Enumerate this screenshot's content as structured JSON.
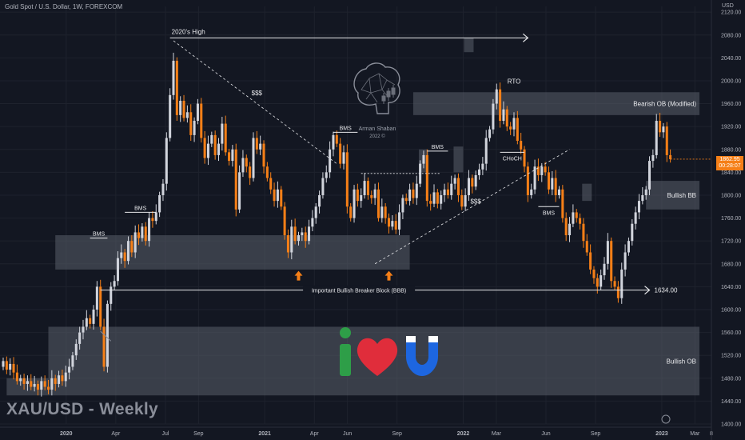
{
  "header": {
    "title": "Gold Spot / U.S. Dollar, 1W, FOREXCOM",
    "currency": "USD"
  },
  "watermark": "XAU/USD - Weekly",
  "price_tag": {
    "price": "1862.95",
    "countdown": "00:28:07"
  },
  "logo": {
    "name": "Arman Shaban",
    "year": "2022 ©",
    "icon": "brain-circuit-icon"
  },
  "love_graphic": {
    "icons": [
      "letter-i-icon",
      "heart-icon",
      "magnet-u-icon"
    ],
    "colors": [
      "#2e9e48",
      "#e02d3b",
      "#1d66e0"
    ]
  },
  "colors": {
    "background": "#131722",
    "bull": "#d1d4dc",
    "bear": "#f57f17",
    "zone": "#5a5e6a",
    "accent": "#f57f17"
  },
  "chart_data": {
    "type": "candlestick",
    "ylim": [
      1400,
      2130
    ],
    "y_ticks": [
      "2120.00",
      "2080.00",
      "2040.00",
      "2000.00",
      "1960.00",
      "1920.00",
      "1880.00",
      "1840.00",
      "1800.00",
      "1760.00",
      "1720.00",
      "1680.00",
      "1640.00",
      "1600.00",
      "1560.00",
      "1520.00",
      "1480.00",
      "1440.00",
      "1400.00"
    ],
    "x_ticks": [
      {
        "label": "2020",
        "date": "2020-01"
      },
      {
        "label": "Apr",
        "date": "2020-04"
      },
      {
        "label": "Jul",
        "date": "2020-07"
      },
      {
        "label": "Sep",
        "date": "2020-09"
      },
      {
        "label": "2021",
        "date": "2021-01"
      },
      {
        "label": "Apr",
        "date": "2021-04"
      },
      {
        "label": "Jun",
        "date": "2021-06"
      },
      {
        "label": "Sep",
        "date": "2021-09"
      },
      {
        "label": "2022",
        "date": "2022-01"
      },
      {
        "label": "Mar",
        "date": "2022-03"
      },
      {
        "label": "Jun",
        "date": "2022-06"
      },
      {
        "label": "Sep",
        "date": "2022-09"
      },
      {
        "label": "2023",
        "date": "2023-01"
      },
      {
        "label": "Mar",
        "date": "2023-03"
      },
      {
        "label": "8",
        "date": "2023-04"
      }
    ],
    "date_range": [
      "2019-09",
      "2023-04"
    ],
    "weekly_closes": [
      1510,
      1495,
      1505,
      1490,
      1475,
      1480,
      1470,
      1475,
      1465,
      1470,
      1460,
      1475,
      1465,
      1460,
      1480,
      1470,
      1485,
      1475,
      1490,
      1500,
      1520,
      1540,
      1560,
      1570,
      1585,
      1575,
      1600,
      1640,
      1570,
      1500,
      1610,
      1640,
      1650,
      1690,
      1700,
      1685,
      1720,
      1700,
      1735,
      1725,
      1745,
      1720,
      1760,
      1755,
      1770,
      1800,
      1820,
      1900,
      1975,
      2035,
      1940,
      1965,
      1935,
      1945,
      1905,
      1930,
      1960,
      1900,
      1865,
      1890,
      1905,
      1870,
      1890,
      1925,
      1875,
      1860,
      1880,
      1775,
      1840,
      1865,
      1850,
      1830,
      1900,
      1880,
      1890,
      1850,
      1830,
      1810,
      1790,
      1810,
      1780,
      1730,
      1700,
      1745,
      1720,
      1730,
      1735,
      1720,
      1745,
      1760,
      1780,
      1800,
      1830,
      1840,
      1880,
      1905,
      1890,
      1855,
      1875,
      1780,
      1760,
      1810,
      1790,
      1800,
      1825,
      1800,
      1795,
      1810,
      1760,
      1780,
      1760,
      1745,
      1755,
      1740,
      1770,
      1795,
      1790,
      1810,
      1795,
      1820,
      1855,
      1870,
      1790,
      1785,
      1805,
      1785,
      1800,
      1810,
      1800,
      1820,
      1830,
      1800,
      1780,
      1800,
      1830,
      1815,
      1835,
      1845,
      1855,
      1900,
      1915,
      1960,
      1985,
      1930,
      1950,
      1920,
      1915,
      1935,
      1895,
      1880,
      1850,
      1800,
      1810,
      1850,
      1835,
      1850,
      1840,
      1810,
      1830,
      1800,
      1810,
      1760,
      1730,
      1750,
      1770,
      1760,
      1750,
      1720,
      1700,
      1670,
      1655,
      1640,
      1660,
      1680,
      1720,
      1650,
      1640,
      1620,
      1670,
      1700,
      1720,
      1750,
      1770,
      1790,
      1800,
      1810,
      1860,
      1870,
      1930,
      1910,
      1920,
      1870,
      1862.95
    ],
    "annotations": [
      {
        "text": "2020's High",
        "kind": "arrow",
        "level": 2075
      },
      {
        "text": "$$$",
        "kind": "liquidity",
        "level": 1975
      },
      {
        "text": "$$$",
        "kind": "liquidity",
        "level": 1785
      },
      {
        "text": "BMS",
        "kind": "structure",
        "level": 1725
      },
      {
        "text": "BMS",
        "kind": "structure",
        "level": 1770
      },
      {
        "text": "BMS",
        "kind": "structure",
        "level": 1910
      },
      {
        "text": "BMS",
        "kind": "structure",
        "level": 1877
      },
      {
        "text": "BMS",
        "kind": "structure",
        "level": 1780
      },
      {
        "text": "RTO",
        "kind": "label",
        "level": 1995
      },
      {
        "text": "CHoCH",
        "kind": "structure",
        "level": 1875
      },
      {
        "text": "Important Bullish Breaker Block (BBB)",
        "kind": "level",
        "level": 1634
      },
      {
        "text": "1634.00",
        "kind": "level-price",
        "level": 1634
      }
    ],
    "zones": [
      {
        "text": "Bearish OB (Modified)",
        "low": 1940,
        "high": 1980
      },
      {
        "text": "Bullish BB",
        "low": 1775,
        "high": 1825
      },
      {
        "text": "Bullish OB",
        "low": 1450,
        "high": 1570
      },
      {
        "text": "",
        "low": 1670,
        "high": 1730
      },
      {
        "text": "",
        "low": 1450,
        "high": 1480
      }
    ]
  }
}
